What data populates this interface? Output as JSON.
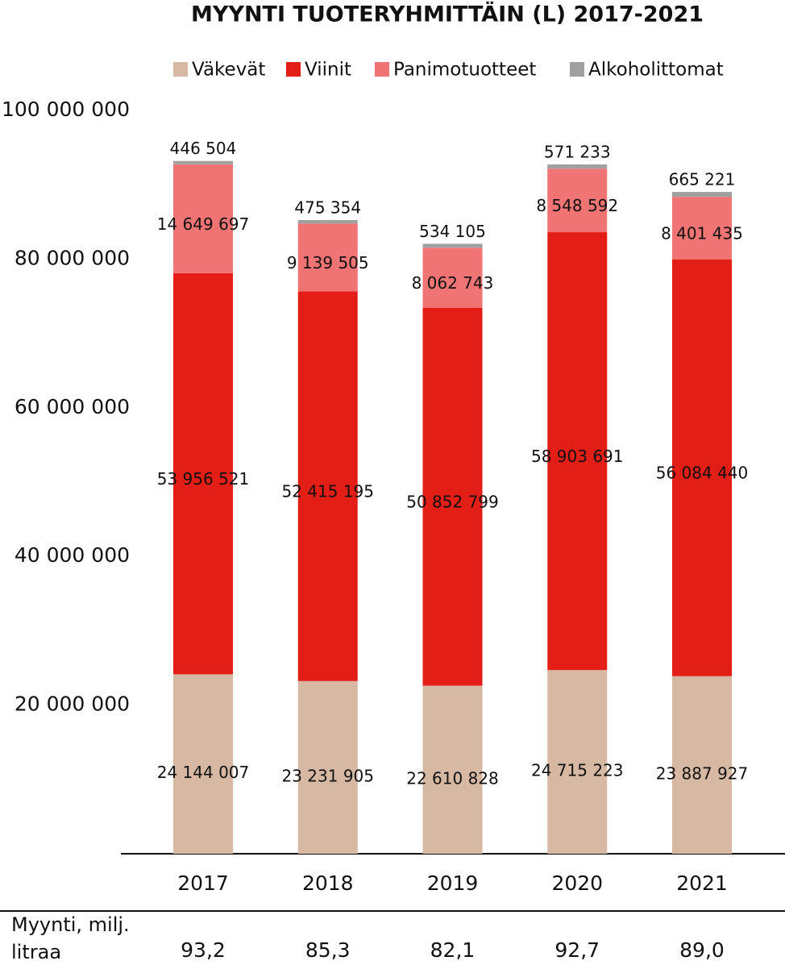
{
  "chart_data": {
    "type": "stacked_bar",
    "title": "MYYNTI TUOTERYHMITTÄIN (L) 2017-2021",
    "categories": [
      "2017",
      "2018",
      "2019",
      "2020",
      "2021"
    ],
    "series": [
      {
        "name": "Väkevät",
        "color": "#d7b9a3",
        "values": [
          24144007,
          23231905,
          22610828,
          24715223,
          23887927
        ],
        "value_labels": [
          "24 144 007",
          "23 231 905",
          "22 610 828",
          "24 715 223",
          "23 887 927"
        ]
      },
      {
        "name": "Viinit",
        "color": "#e31e17",
        "values": [
          53956521,
          52415195,
          50852799,
          58903691,
          56084440
        ],
        "value_labels": [
          "53 956 521",
          "52 415 195",
          "50 852 799",
          "58 903 691",
          "56 084 440"
        ]
      },
      {
        "name": "Panimotuotteet",
        "color": "#ef7473",
        "values": [
          14649697,
          9139505,
          8062743,
          8548592,
          8401435
        ],
        "value_labels": [
          "14 649 697",
          "9 139 505",
          "8 062 743",
          "8 548 592",
          "8 401 435"
        ]
      },
      {
        "name": "Alkoholittomat",
        "color": "#a0a0a0",
        "values": [
          446504,
          475354,
          534105,
          571233,
          665221
        ],
        "value_labels": [
          "446 504",
          "475 354",
          "534 105",
          "571 233",
          "665 221"
        ]
      }
    ],
    "ylim": [
      0,
      100000000
    ],
    "yticks": [
      {
        "value": 20000000,
        "label": "20 000 000"
      },
      {
        "value": 40000000,
        "label": "40 000 000"
      },
      {
        "value": 60000000,
        "label": "60 000 000"
      },
      {
        "value": 80000000,
        "label": "80 000 000"
      },
      {
        "value": 100000000,
        "label": "100 000 000"
      }
    ],
    "totals_title": "Myynti, milj. litraa",
    "totals": [
      {
        "value": 93.2,
        "label": "93,2"
      },
      {
        "value": 85.3,
        "label": "85,3"
      },
      {
        "value": 82.1,
        "label": "82,1"
      },
      {
        "value": 92.7,
        "label": "92,7"
      },
      {
        "value": 89.0,
        "label": "89,0"
      }
    ]
  }
}
